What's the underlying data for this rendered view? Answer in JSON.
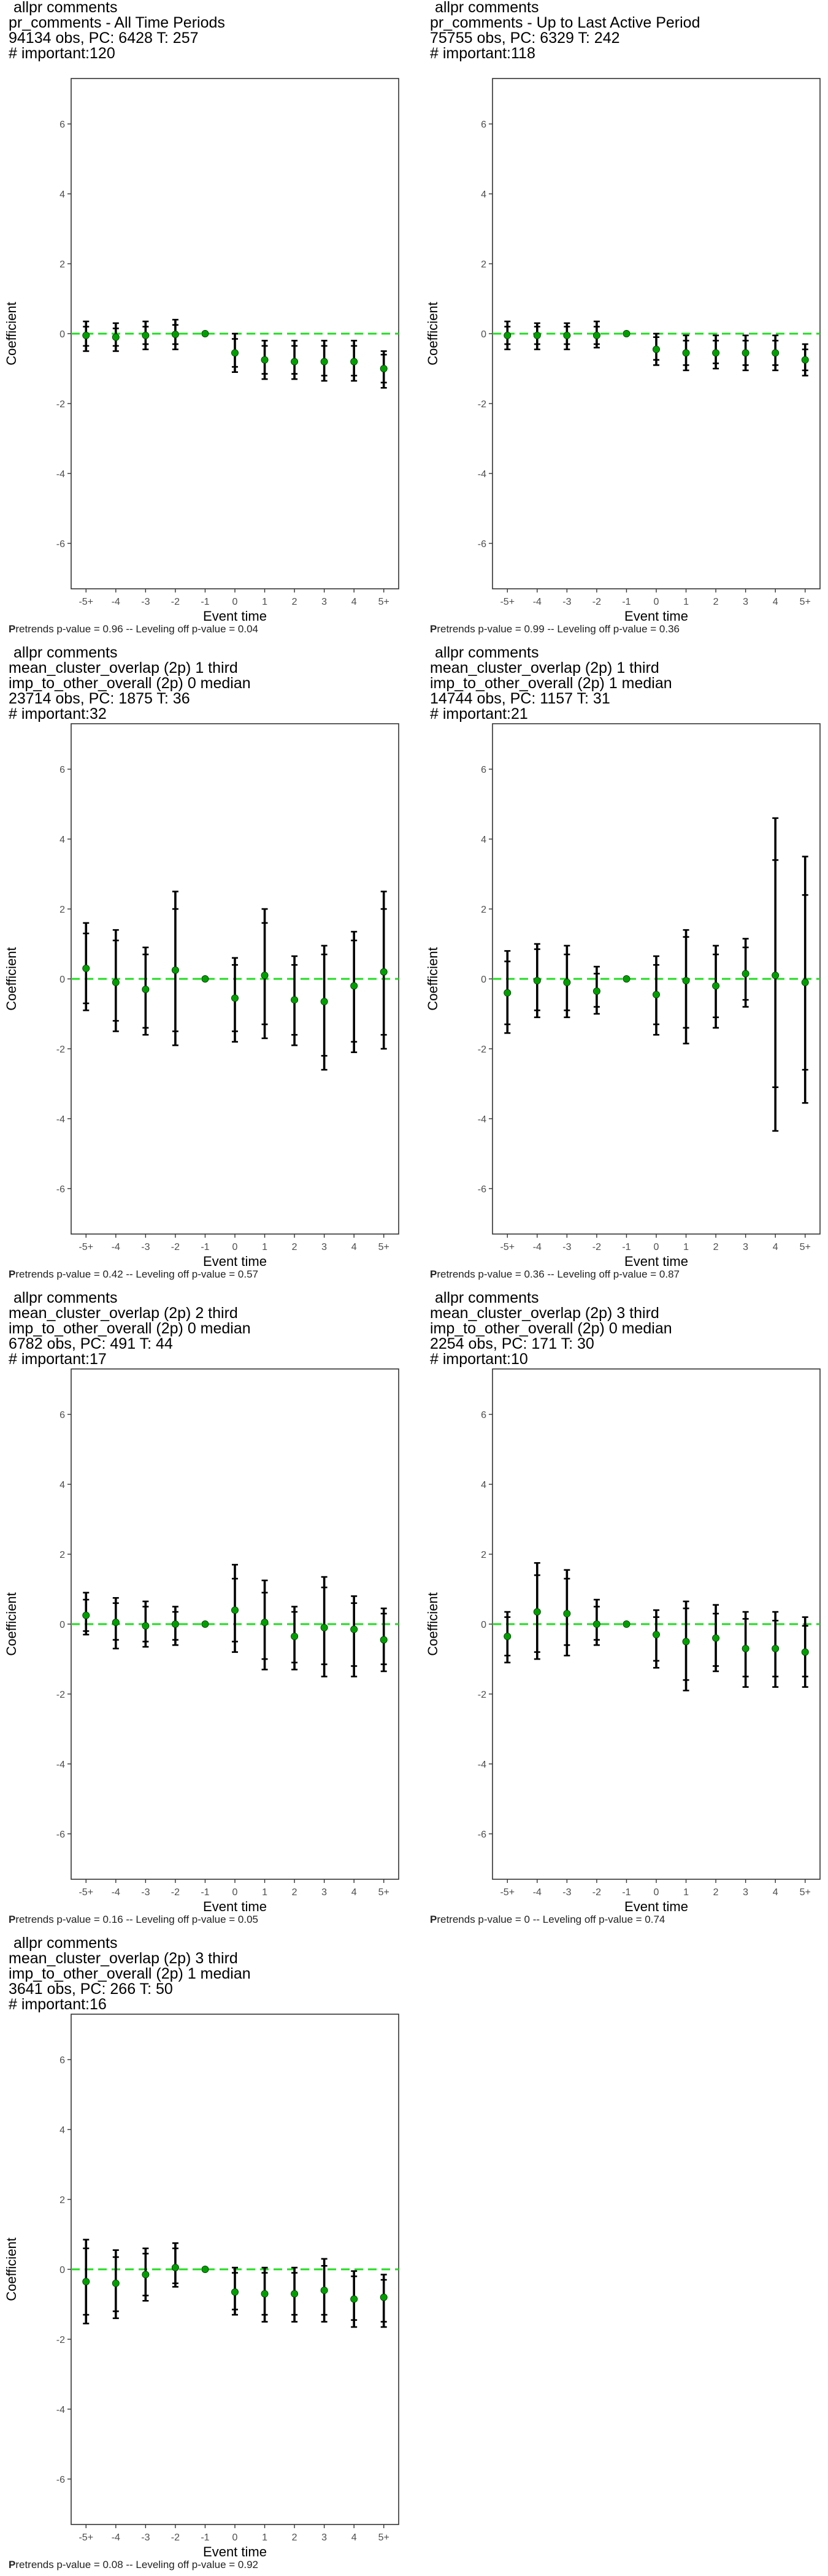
{
  "chart_data": [
    {
      "type": "errorbar",
      "header": [
        "allpr comments",
        "pr_comments - All Time Periods",
        "94134 obs, PC: 6428 T: 257",
        "# important:120"
      ],
      "footer": {
        "bold": "P",
        "text": "retrends p-value = 0.96 -- Leveling off p-value = 0.04"
      },
      "xlabel": "Event time",
      "ylabel": "Coefficient",
      "x": [
        "-5+",
        "-4",
        "-3",
        "-2",
        "-1",
        "0",
        "1",
        "2",
        "3",
        "4",
        "5+"
      ],
      "yticks": [
        6,
        4,
        2,
        0,
        -2,
        -4,
        -6
      ],
      "ylim": [
        -7.3,
        7.3
      ],
      "series": [
        {
          "y": [
            -0.05,
            -0.1,
            -0.05,
            -0.02,
            0,
            -0.55,
            -0.75,
            -0.8,
            -0.8,
            -0.8,
            -1.0
          ],
          "lo": [
            -0.5,
            -0.5,
            -0.45,
            -0.45,
            0,
            -1.1,
            -1.3,
            -1.3,
            -1.35,
            -1.35,
            -1.55
          ],
          "hi": [
            0.35,
            0.3,
            0.35,
            0.4,
            0,
            0.0,
            -0.2,
            -0.2,
            -0.2,
            -0.2,
            -0.5
          ],
          "ilo": [
            -0.35,
            -0.35,
            -0.3,
            -0.3,
            0,
            -0.95,
            -1.15,
            -1.15,
            -1.2,
            -1.2,
            -1.4
          ],
          "ihi": [
            0.2,
            0.15,
            0.2,
            0.25,
            0,
            -0.15,
            -0.35,
            -0.35,
            -0.35,
            -0.35,
            -0.6
          ]
        }
      ]
    },
    {
      "type": "errorbar",
      "header": [
        "allpr comments",
        "pr_comments - Up to Last Active Period",
        "75755 obs, PC: 6329 T: 242",
        "# important:118"
      ],
      "footer": {
        "bold": "P",
        "text": "retrends p-value = 0.99 -- Leveling off p-value = 0.36"
      },
      "xlabel": "Event time",
      "ylabel": "Coefficient",
      "x": [
        "-5+",
        "-4",
        "-3",
        "-2",
        "-1",
        "0",
        "1",
        "2",
        "3",
        "4",
        "5+"
      ],
      "yticks": [
        6,
        4,
        2,
        0,
        -2,
        -4,
        -6
      ],
      "ylim": [
        -7.3,
        7.3
      ],
      "series": [
        {
          "y": [
            -0.05,
            -0.05,
            -0.05,
            -0.05,
            0,
            -0.45,
            -0.55,
            -0.55,
            -0.55,
            -0.55,
            -0.75
          ],
          "lo": [
            -0.45,
            -0.45,
            -0.45,
            -0.4,
            0,
            -0.9,
            -1.05,
            -1.0,
            -1.05,
            -1.05,
            -1.2
          ],
          "hi": [
            0.35,
            0.3,
            0.3,
            0.35,
            0,
            0.0,
            -0.05,
            -0.05,
            -0.05,
            -0.05,
            -0.3
          ],
          "ilo": [
            -0.3,
            -0.3,
            -0.3,
            -0.3,
            0,
            -0.75,
            -0.9,
            -0.85,
            -0.9,
            -0.9,
            -1.05
          ],
          "ihi": [
            0.2,
            0.2,
            0.2,
            0.2,
            0,
            -0.1,
            -0.2,
            -0.2,
            -0.2,
            -0.2,
            -0.45
          ]
        }
      ]
    },
    {
      "type": "errorbar",
      "header": [
        "allpr comments",
        "mean_cluster_overlap (2p) 1 third",
        "imp_to_other_overall (2p) 0 median",
        "23714 obs, PC: 1875 T: 36",
        "# important:32"
      ],
      "footer": {
        "bold": "P",
        "text": "retrends p-value = 0.42 -- Leveling off p-value = 0.57"
      },
      "xlabel": "Event time",
      "ylabel": "Coefficient",
      "x": [
        "-5+",
        "-4",
        "-3",
        "-2",
        "-1",
        "0",
        "1",
        "2",
        "3",
        "4",
        "5+"
      ],
      "yticks": [
        6,
        4,
        2,
        0,
        -2,
        -4,
        -6
      ],
      "ylim": [
        -7.3,
        7.3
      ],
      "series": [
        {
          "y": [
            0.3,
            -0.1,
            -0.3,
            0.25,
            0,
            -0.55,
            0.1,
            -0.6,
            -0.65,
            -0.2,
            0.2
          ],
          "lo": [
            -0.9,
            -1.5,
            -1.6,
            -1.9,
            0,
            -1.8,
            -1.7,
            -1.9,
            -2.6,
            -2.1,
            -2.0
          ],
          "hi": [
            1.6,
            1.4,
            0.9,
            2.5,
            0,
            0.6,
            2.0,
            0.65,
            0.95,
            1.35,
            2.5
          ],
          "ilo": [
            -0.7,
            -1.2,
            -1.4,
            -1.5,
            0,
            -1.5,
            -1.3,
            -1.6,
            -2.2,
            -1.8,
            -1.6
          ],
          "ihi": [
            1.3,
            1.1,
            0.7,
            2.0,
            0,
            0.4,
            1.6,
            0.4,
            0.7,
            1.1,
            2.0
          ]
        }
      ]
    },
    {
      "type": "errorbar",
      "header": [
        "allpr comments",
        "mean_cluster_overlap (2p) 1 third",
        "imp_to_other_overall (2p) 1 median",
        "14744 obs, PC: 1157 T: 31",
        "# important:21"
      ],
      "footer": {
        "bold": "P",
        "text": "retrends p-value = 0.36 -- Leveling off p-value = 0.87"
      },
      "xlabel": "Event time",
      "ylabel": "Coefficient",
      "x": [
        "-5+",
        "-4",
        "-3",
        "-2",
        "-1",
        "0",
        "1",
        "2",
        "3",
        "4",
        "5+"
      ],
      "yticks": [
        6,
        4,
        2,
        0,
        -2,
        -4,
        -6
      ],
      "ylim": [
        -7.3,
        7.3
      ],
      "series": [
        {
          "y": [
            -0.4,
            -0.05,
            -0.1,
            -0.35,
            0,
            -0.45,
            -0.05,
            -0.2,
            0.15,
            0.1,
            -0.1
          ],
          "lo": [
            -1.55,
            -1.1,
            -1.1,
            -1.0,
            0,
            -1.6,
            -1.85,
            -1.4,
            -0.8,
            -4.35,
            -3.55
          ],
          "hi": [
            0.8,
            1.0,
            0.95,
            0.35,
            0,
            0.65,
            1.4,
            0.95,
            1.15,
            4.6,
            3.5
          ],
          "ilo": [
            -1.3,
            -0.9,
            -0.9,
            -0.8,
            0,
            -1.3,
            -1.4,
            -1.1,
            -0.6,
            -3.1,
            -2.6
          ],
          "ihi": [
            0.5,
            0.85,
            0.7,
            0.15,
            0,
            0.4,
            1.2,
            0.7,
            0.9,
            3.4,
            2.4
          ]
        }
      ]
    },
    {
      "type": "errorbar",
      "header": [
        "allpr comments",
        "mean_cluster_overlap (2p) 2 third",
        "imp_to_other_overall (2p) 0 median",
        "6782 obs, PC: 491 T: 44",
        "# important:17"
      ],
      "footer": {
        "bold": "P",
        "text": "retrends p-value = 0.16 -- Leveling off p-value = 0.05"
      },
      "xlabel": "Event time",
      "ylabel": "Coefficient",
      "x": [
        "-5+",
        "-4",
        "-3",
        "-2",
        "-1",
        "0",
        "1",
        "2",
        "3",
        "4",
        "5+"
      ],
      "yticks": [
        6,
        4,
        2,
        0,
        -2,
        -4,
        -6
      ],
      "ylim": [
        -7.3,
        7.3
      ],
      "series": [
        {
          "y": [
            0.25,
            0.05,
            -0.05,
            0.0,
            0,
            0.4,
            0.05,
            -0.35,
            -0.1,
            -0.15,
            -0.45
          ],
          "lo": [
            -0.3,
            -0.7,
            -0.65,
            -0.6,
            0,
            -0.8,
            -1.3,
            -1.3,
            -1.5,
            -1.5,
            -1.35
          ],
          "hi": [
            0.9,
            0.75,
            0.65,
            0.5,
            0,
            1.7,
            1.25,
            0.5,
            1.35,
            0.8,
            0.45
          ],
          "ilo": [
            -0.2,
            -0.45,
            -0.5,
            -0.45,
            0,
            -0.5,
            -1.0,
            -1.1,
            -1.15,
            -1.2,
            -1.15
          ],
          "ihi": [
            0.7,
            0.6,
            0.5,
            0.35,
            0,
            1.3,
            0.9,
            0.35,
            1.05,
            0.6,
            0.3
          ]
        }
      ]
    },
    {
      "type": "errorbar",
      "header": [
        "allpr comments",
        "mean_cluster_overlap (2p) 3 third",
        "imp_to_other_overall (2p) 0 median",
        "2254 obs, PC: 171 T: 30",
        "# important:10"
      ],
      "footer": {
        "bold": "P",
        "text": "retrends p-value = 0 -- Leveling off p-value = 0.74"
      },
      "xlabel": "Event time",
      "ylabel": "Coefficient",
      "x": [
        "-5+",
        "-4",
        "-3",
        "-2",
        "-1",
        "0",
        "1",
        "2",
        "3",
        "4",
        "5+"
      ],
      "yticks": [
        6,
        4,
        2,
        0,
        -2,
        -4,
        -6
      ],
      "ylim": [
        -7.3,
        7.3
      ],
      "series": [
        {
          "y": [
            -0.35,
            0.35,
            0.3,
            0.0,
            0,
            -0.3,
            -0.5,
            -0.4,
            -0.7,
            -0.7,
            -0.8
          ],
          "lo": [
            -1.1,
            -1.0,
            -0.9,
            -0.6,
            0,
            -1.25,
            -1.9,
            -1.35,
            -1.8,
            -1.8,
            -1.8
          ],
          "hi": [
            0.35,
            1.75,
            1.55,
            0.7,
            0,
            0.4,
            0.65,
            0.55,
            0.35,
            0.35,
            0.2
          ],
          "ilo": [
            -0.9,
            -0.8,
            -0.6,
            -0.45,
            0,
            -1.05,
            -1.6,
            -1.2,
            -1.5,
            -1.5,
            -1.5
          ],
          "ihi": [
            0.2,
            1.4,
            1.3,
            0.5,
            0,
            0.2,
            0.45,
            0.3,
            0.15,
            0.1,
            -0.05
          ]
        }
      ]
    },
    {
      "type": "errorbar",
      "header": [
        "allpr comments",
        "mean_cluster_overlap (2p) 3 third",
        "imp_to_other_overall (2p) 1 median",
        "3641 obs, PC: 266 T: 50",
        "# important:16"
      ],
      "footer": {
        "bold": "P",
        "text": "retrends p-value = 0.08 -- Leveling off p-value = 0.92"
      },
      "xlabel": "Event time",
      "ylabel": "Coefficient",
      "x": [
        "-5+",
        "-4",
        "-3",
        "-2",
        "-1",
        "0",
        "1",
        "2",
        "3",
        "4",
        "5+"
      ],
      "yticks": [
        6,
        4,
        2,
        0,
        -2,
        -4,
        -6
      ],
      "ylim": [
        -7.3,
        7.3
      ],
      "series": [
        {
          "y": [
            -0.35,
            -0.4,
            -0.15,
            0.05,
            0,
            -0.65,
            -0.7,
            -0.7,
            -0.6,
            -0.85,
            -0.8
          ],
          "lo": [
            -1.55,
            -1.4,
            -0.9,
            -0.5,
            0,
            -1.3,
            -1.5,
            -1.5,
            -1.5,
            -1.65,
            -1.65
          ],
          "hi": [
            0.85,
            0.55,
            0.6,
            0.75,
            0,
            0.05,
            0.05,
            0.05,
            0.3,
            -0.05,
            -0.15
          ],
          "ilo": [
            -1.3,
            -1.2,
            -0.75,
            -0.4,
            0,
            -1.15,
            -1.3,
            -1.3,
            -1.3,
            -1.45,
            -1.5
          ],
          "ihi": [
            0.6,
            0.35,
            0.45,
            0.6,
            0,
            -0.1,
            -0.1,
            -0.1,
            0.1,
            -0.2,
            -0.3
          ]
        }
      ]
    }
  ]
}
